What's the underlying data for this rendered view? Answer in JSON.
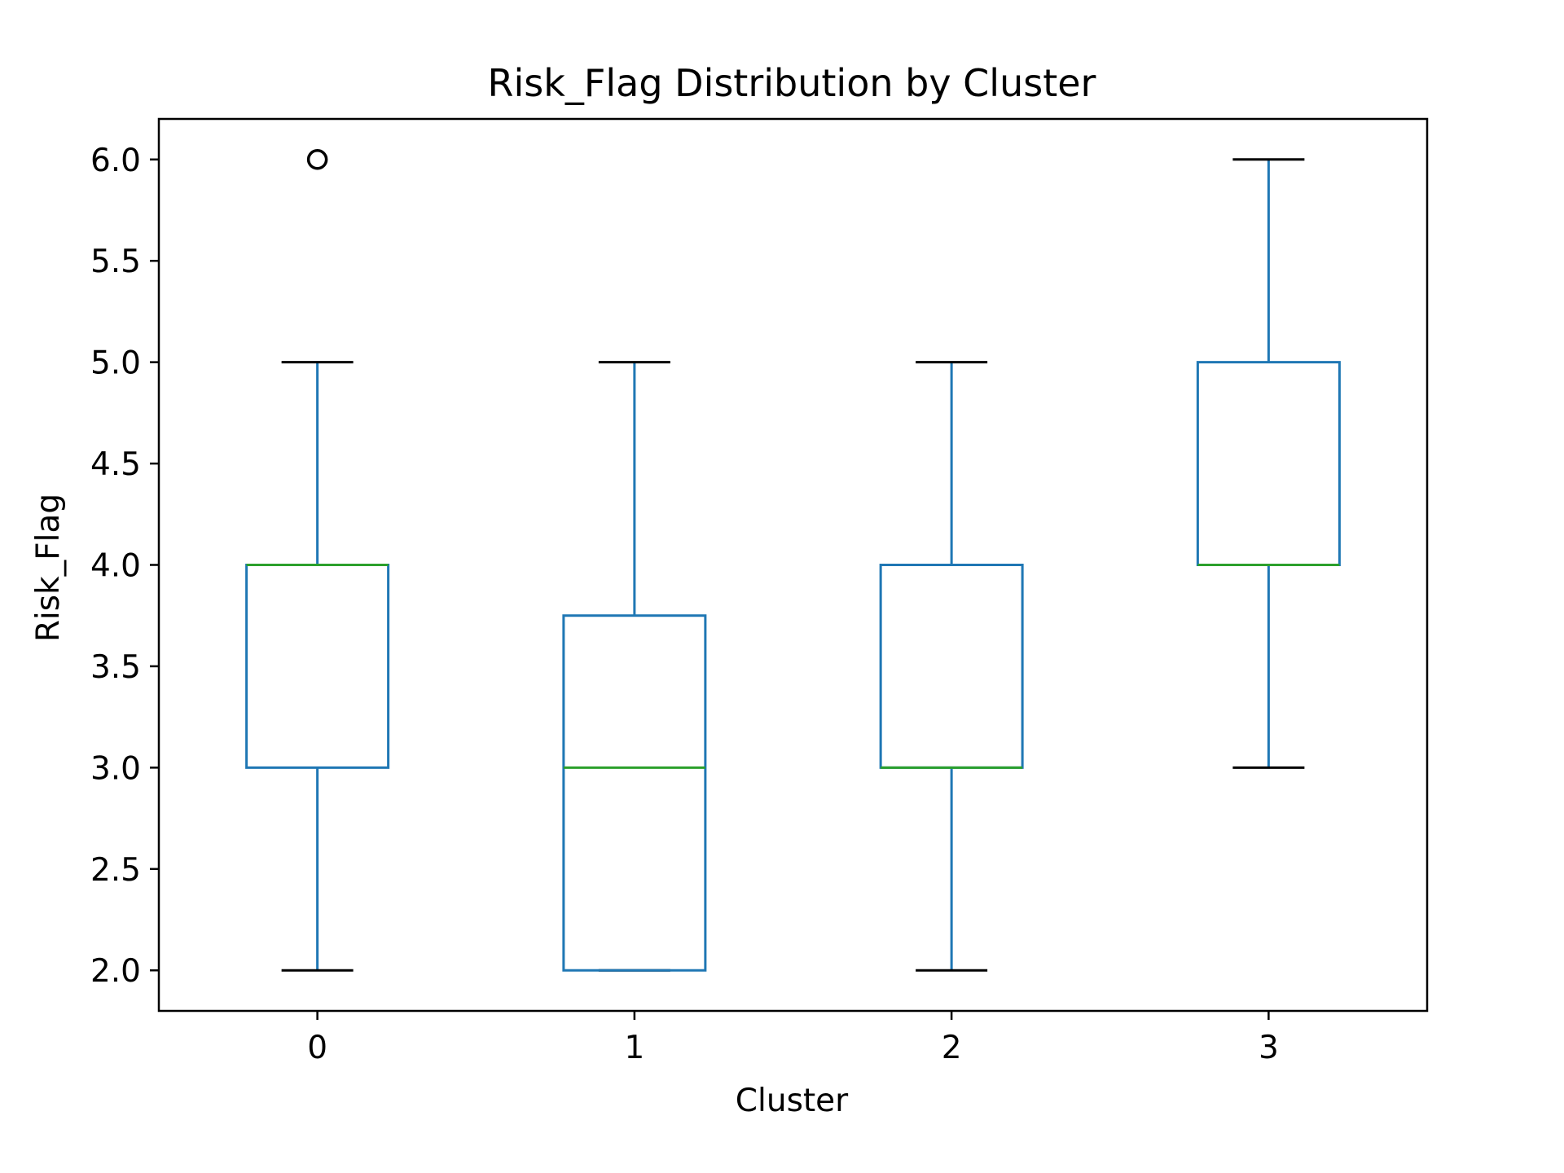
{
  "chart_data": {
    "type": "box",
    "title": "Risk_Flag Distribution by Cluster",
    "xlabel": "Cluster",
    "ylabel": "Risk_Flag",
    "categories": [
      "0",
      "1",
      "2",
      "3"
    ],
    "ylim": [
      1.8,
      6.2
    ],
    "yticks": [
      2.0,
      2.5,
      3.0,
      3.5,
      4.0,
      4.5,
      5.0,
      5.5,
      6.0
    ],
    "ytick_labels": [
      "2.0",
      "2.5",
      "3.0",
      "3.5",
      "4.0",
      "4.5",
      "5.0",
      "5.5",
      "6.0"
    ],
    "grid": false,
    "legend": "none",
    "boxes": [
      {
        "category": "0",
        "whisker_low": 2.0,
        "q1": 3.0,
        "median": 4.0,
        "q3": 4.0,
        "whisker_high": 5.0,
        "outliers": [
          6.0
        ]
      },
      {
        "category": "1",
        "whisker_low": 2.0,
        "q1": 2.0,
        "median": 3.0,
        "q3": 3.75,
        "whisker_high": 5.0,
        "outliers": []
      },
      {
        "category": "2",
        "whisker_low": 2.0,
        "q1": 3.0,
        "median": 3.0,
        "q3": 4.0,
        "whisker_high": 5.0,
        "outliers": []
      },
      {
        "category": "3",
        "whisker_low": 3.0,
        "q1": 4.0,
        "median": 4.0,
        "q3": 5.0,
        "whisker_high": 6.0,
        "outliers": []
      }
    ],
    "colors": {
      "box": "#1f77b4",
      "median": "#2ca02c",
      "cap": "#000000",
      "outlier": "#000000",
      "axes": "#000000"
    }
  }
}
